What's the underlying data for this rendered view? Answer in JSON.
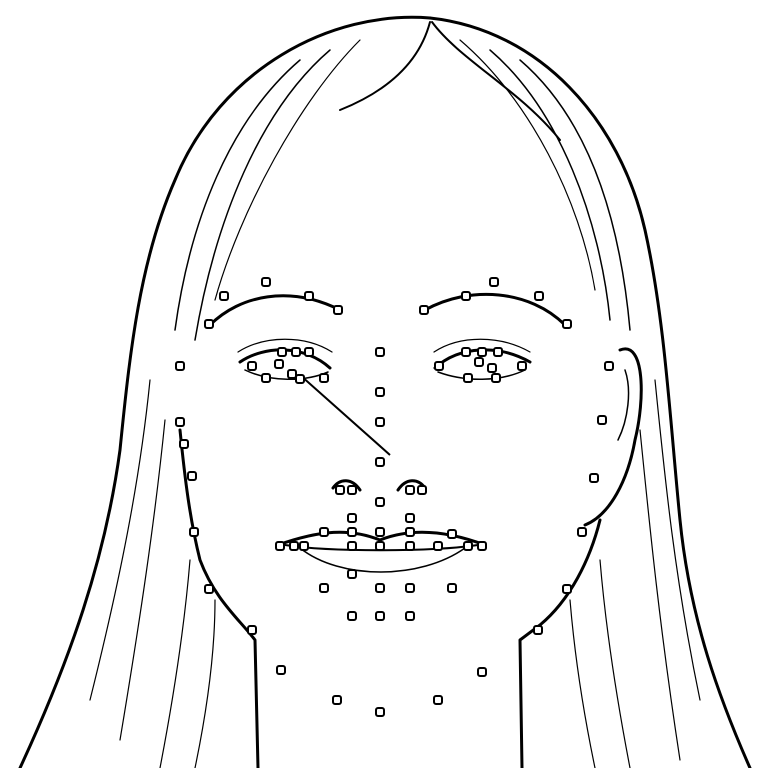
{
  "figure": {
    "subject": "face-sketch-with-landmarks",
    "colors": {
      "ink": "#000000",
      "background": "#ffffff",
      "marker_fill": "#ffffff"
    },
    "marker_shape": "rounded-square",
    "landmark_count": 80
  }
}
